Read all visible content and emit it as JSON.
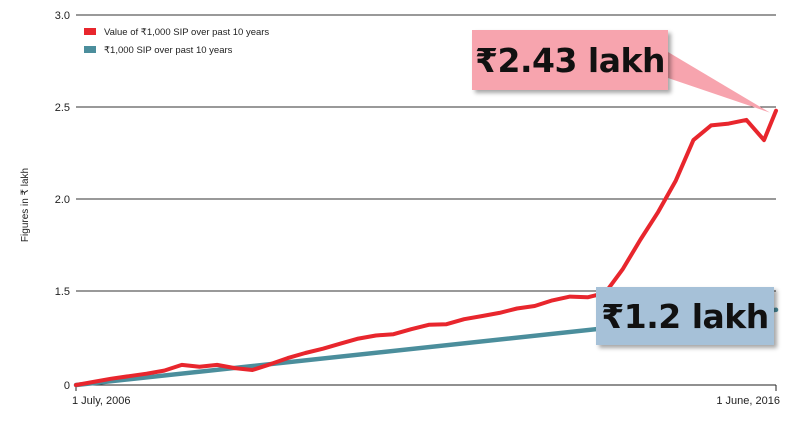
{
  "chart_data": {
    "type": "line",
    "ylabel": "Figures in ₹ lakh",
    "ylim": [
      0,
      3.0
    ],
    "y_ticks": [
      "0",
      "1.5",
      "2.0",
      "2.5",
      "3.0"
    ],
    "y_tick_values": [
      0,
      1.5,
      2.0,
      2.5,
      3.0
    ],
    "x_start_label": "1 July, 2006",
    "x_end_label": "1 June, 2016",
    "x_range": [
      2006.5,
      2016.42
    ],
    "grid": true,
    "legend_position": "top-left",
    "series": [
      {
        "name": "Value of ₹1,000 SIP over past 10 years",
        "color": "#e8262d",
        "x": [
          2006.5,
          2006.75,
          2007.0,
          2007.25,
          2007.5,
          2007.75,
          2008.0,
          2008.25,
          2008.5,
          2008.75,
          2009.0,
          2009.25,
          2009.5,
          2009.75,
          2010.0,
          2010.25,
          2010.5,
          2010.75,
          2011.0,
          2011.25,
          2011.5,
          2011.75,
          2012.0,
          2012.25,
          2012.5,
          2012.75,
          2013.0,
          2013.25,
          2013.5,
          2013.75,
          2014.0,
          2014.25,
          2014.5,
          2014.75,
          2015.0,
          2015.25,
          2015.5,
          2015.75,
          2016.0,
          2016.25,
          2016.42
        ],
        "y": [
          0.0,
          0.05,
          0.1,
          0.14,
          0.18,
          0.23,
          0.32,
          0.29,
          0.32,
          0.27,
          0.24,
          0.33,
          0.43,
          0.51,
          0.58,
          0.66,
          0.74,
          0.79,
          0.81,
          0.89,
          0.96,
          0.97,
          1.05,
          1.1,
          1.15,
          1.22,
          1.26,
          1.35,
          1.41,
          1.4,
          1.47,
          1.62,
          1.78,
          1.93,
          2.1,
          2.32,
          2.4,
          2.41,
          2.43,
          2.32,
          2.48
        ]
      },
      {
        "name": "₹1,000 SIP over past 10 years",
        "color": "#4b8e9c",
        "x": [
          2006.5,
          2016.42
        ],
        "y": [
          0.0,
          1.2
        ]
      }
    ],
    "annotations": [
      {
        "text": "₹2.43 lakh",
        "series": 0
      },
      {
        "text": "₹1.2 lakh",
        "series": 1
      }
    ]
  }
}
